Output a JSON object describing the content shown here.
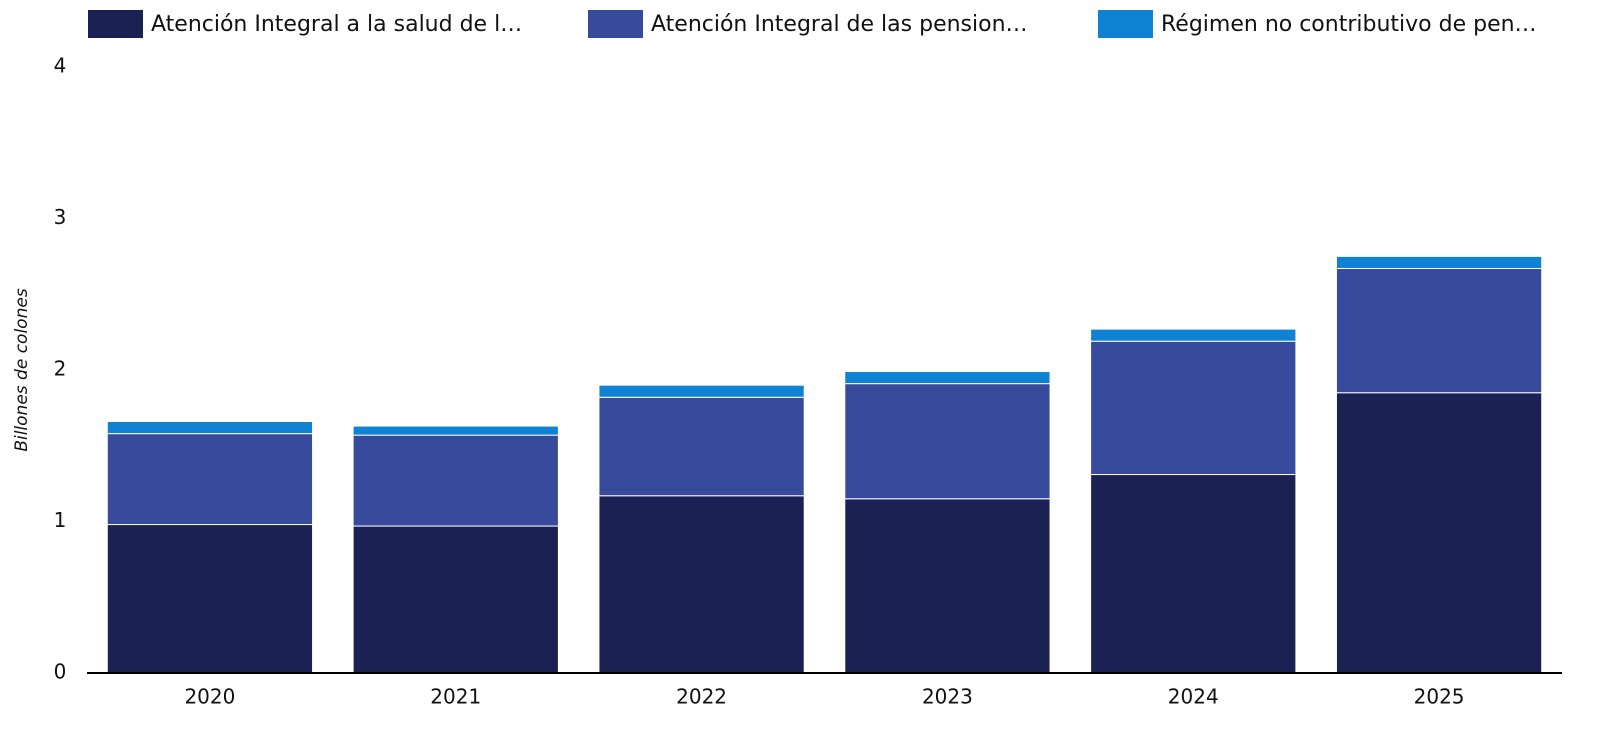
{
  "chart_data": {
    "type": "stacked_bar",
    "ylabel": "Billones de colones",
    "categories": [
      "2020",
      "2021",
      "2022",
      "2023",
      "2024",
      "2025"
    ],
    "series": [
      {
        "name": "Atención Integral a la salud de l…",
        "color": "#1b2152",
        "values": [
          0.98,
          0.97,
          1.17,
          1.15,
          1.31,
          1.85
        ]
      },
      {
        "name": "Atención Integral de las pension…",
        "color": "#374a9b",
        "values": [
          0.6,
          0.6,
          0.65,
          0.76,
          0.88,
          0.82
        ]
      },
      {
        "name": "Régimen no contributivo de pen…",
        "color": "#0f82d4",
        "values": [
          0.08,
          0.06,
          0.08,
          0.08,
          0.08,
          0.08
        ]
      }
    ],
    "ylim": [
      0,
      4
    ],
    "yticks": [
      0,
      1,
      2,
      3,
      4
    ]
  }
}
